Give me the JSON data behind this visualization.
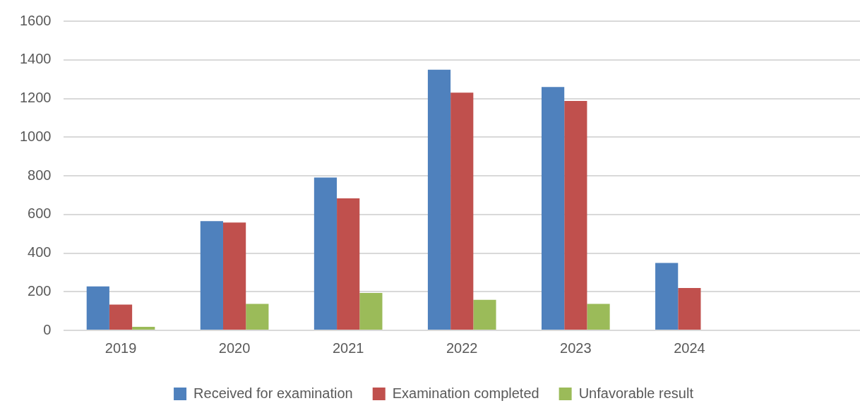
{
  "chart_data": {
    "type": "bar",
    "categories": [
      "2019",
      "2020",
      "2021",
      "2022",
      "2023",
      "2024",
      null
    ],
    "series": [
      {
        "name": "Received for examination",
        "color": "#4f81bd",
        "values": [
          227,
          565,
          791,
          1349,
          1259,
          349,
          null
        ]
      },
      {
        "name": "Examination completed",
        "color": "#c0504d",
        "values": [
          133,
          558,
          683,
          1230,
          1187,
          219,
          null
        ]
      },
      {
        "name": "Unfavorable result",
        "color": "#9bbb59",
        "values": [
          18,
          137,
          194,
          158,
          137,
          null,
          null
        ]
      }
    ],
    "ylim": [
      0,
      1600
    ],
    "yticks": [
      0,
      200,
      400,
      600,
      800,
      1000,
      1200,
      1400,
      1600
    ],
    "grid": "y",
    "legend": "bottom"
  }
}
